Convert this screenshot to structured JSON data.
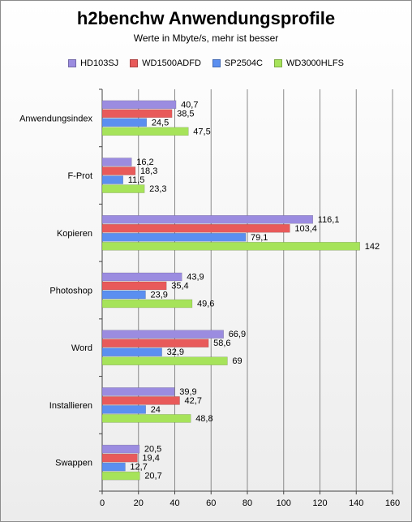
{
  "chart_data": {
    "type": "bar",
    "orientation": "horizontal",
    "title": "h2benchw Anwendungsprofile",
    "subtitle": "Werte in Mbyte/s,  mehr ist besser",
    "categories": [
      "Anwendungsindex",
      "F-Prot",
      "Kopieren",
      "Photoshop",
      "Word",
      "Installieren",
      "Swappen"
    ],
    "series": [
      {
        "name": "HD103SJ",
        "color": "#9b8ce0",
        "values": [
          40.7,
          16.2,
          116.1,
          43.9,
          66.9,
          39.9,
          20.5
        ],
        "labels": [
          "40,7",
          "16,2",
          "116,1",
          "43,9",
          "66,9",
          "39,9",
          "20,5"
        ]
      },
      {
        "name": "WD1500ADFD",
        "color": "#e85a5a",
        "values": [
          38.5,
          18.3,
          103.4,
          35.4,
          58.6,
          42.7,
          19.4
        ],
        "labels": [
          "38,5",
          "18,3",
          "103,4",
          "35,4",
          "58,6",
          "42,7",
          "19,4"
        ]
      },
      {
        "name": "SP2504C",
        "color": "#5b8ff0",
        "values": [
          24.5,
          11.5,
          79.1,
          23.9,
          32.9,
          24,
          12.7
        ],
        "labels": [
          "24,5",
          "11,5",
          "79,1",
          "23,9",
          "32,9",
          "24",
          "12,7"
        ]
      },
      {
        "name": "WD3000HLFS",
        "color": "#a6e35a",
        "values": [
          47.5,
          23.3,
          142,
          49.6,
          69,
          48.8,
          20.7
        ],
        "labels": [
          "47,5",
          "23,3",
          "142",
          "49,6",
          "69",
          "48,8",
          "20,7"
        ]
      }
    ],
    "xlim": [
      0,
      160
    ],
    "xticks": [
      0,
      20,
      40,
      60,
      80,
      100,
      120,
      140,
      160
    ],
    "grid": true,
    "legend_position": "top"
  }
}
